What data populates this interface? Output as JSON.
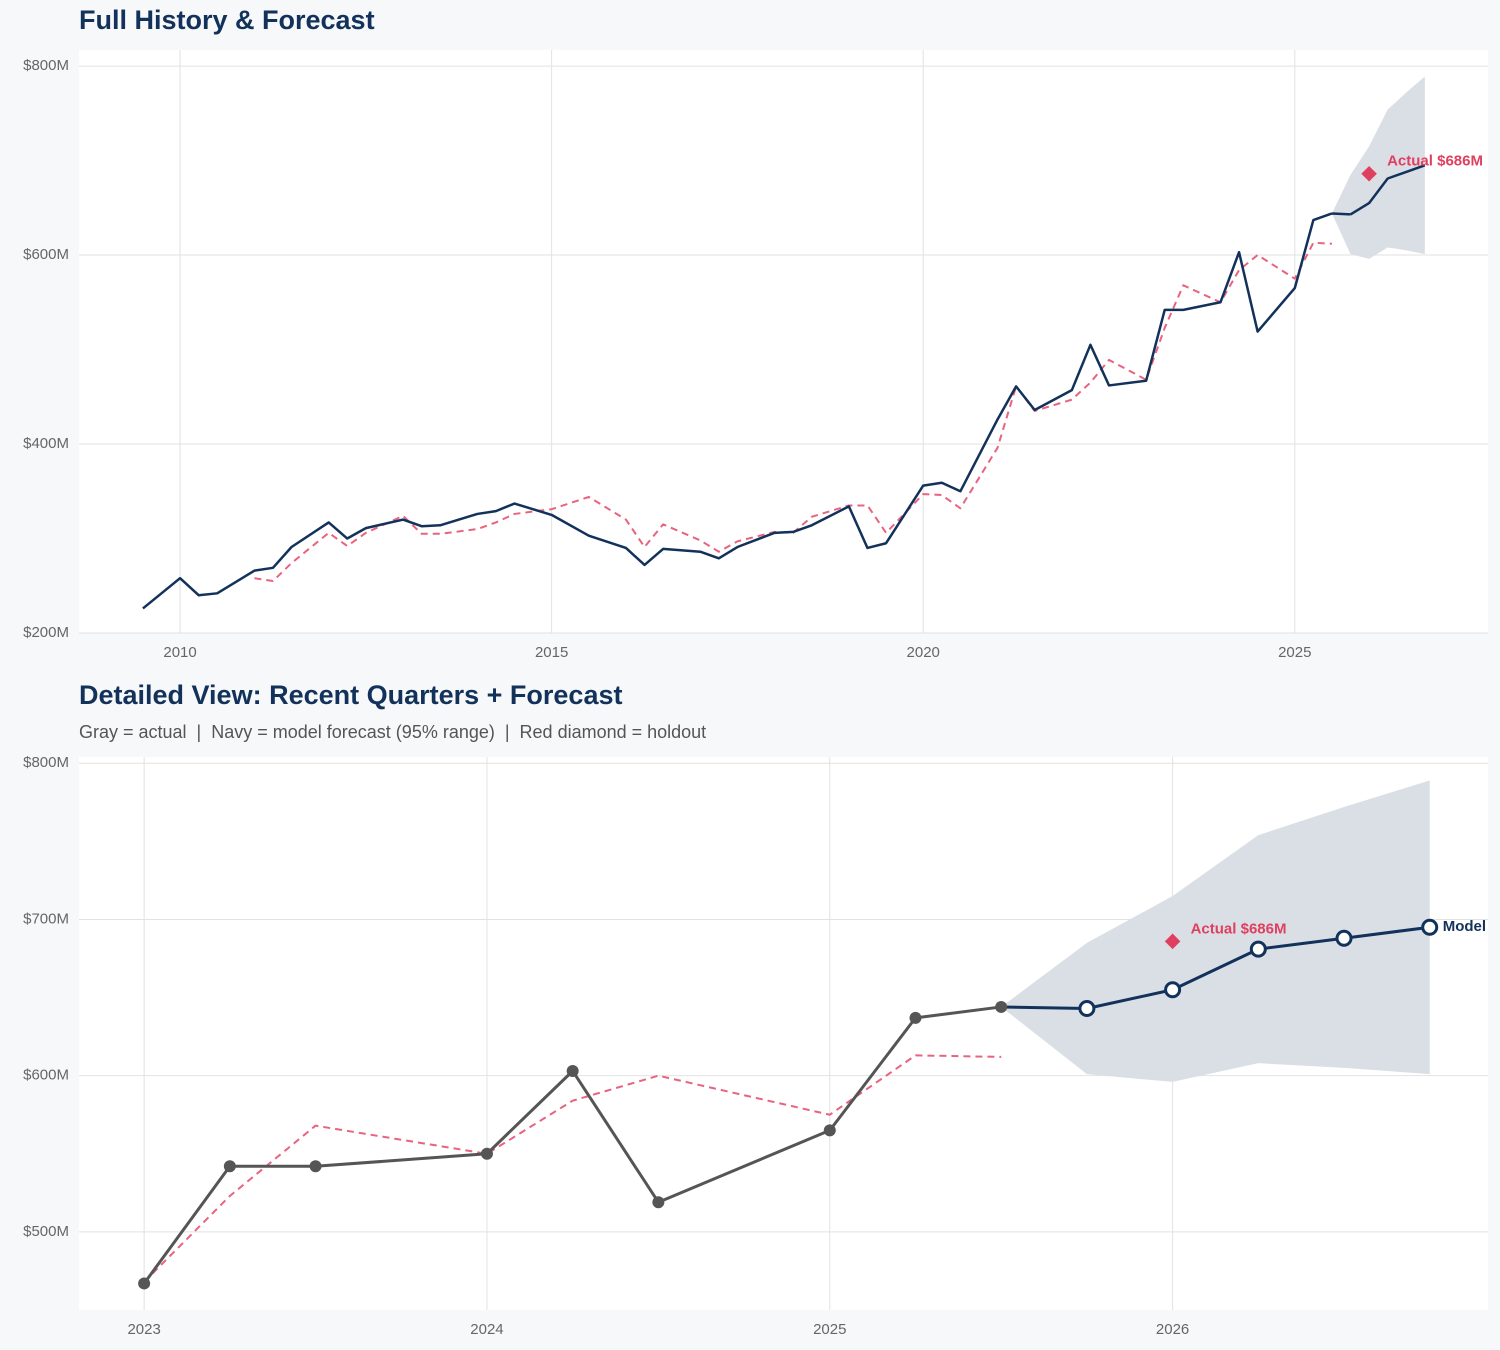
{
  "chart_data": [
    {
      "type": "line",
      "title": "Full History & Forecast",
      "x": [
        2009.5,
        2010,
        2010.25,
        2010.5,
        2011,
        2011.25,
        2011.5,
        2012,
        2012.25,
        2012.5,
        2013,
        2013.25,
        2013.5,
        2014,
        2014.25,
        2014.5,
        2015,
        2015.5,
        2016,
        2016.25,
        2016.5,
        2017,
        2017.25,
        2017.5,
        2018,
        2018.25,
        2018.5,
        2019,
        2019.25,
        2019.5,
        2020,
        2020.25,
        2020.5,
        2021,
        2021.25,
        2021.5,
        2022,
        2022.25,
        2022.5,
        2023,
        2023.25,
        2023.5,
        2024,
        2024.25,
        2024.5,
        2025,
        2025.25,
        2025.5
      ],
      "actual": {
        "color": "#13325b",
        "values": [
          226,
          258,
          240,
          242,
          266,
          269,
          291,
          317,
          300,
          311,
          320,
          313,
          314,
          326,
          329,
          337,
          325,
          303,
          290,
          272,
          289,
          286,
          279,
          291,
          306,
          307,
          314,
          334,
          290,
          295,
          356,
          359,
          350,
          426,
          461,
          436,
          457,
          505,
          462,
          467,
          542,
          542,
          550,
          603,
          519,
          565,
          637,
          644
        ]
      },
      "fitted": {
        "color": "#e8637f",
        "values": [
          null,
          null,
          null,
          null,
          258,
          255,
          274,
          306,
          292,
          306,
          324,
          305,
          305,
          310,
          317,
          326,
          331,
          344,
          320,
          291,
          315,
          298,
          286,
          297,
          307,
          306,
          323,
          335,
          335,
          306,
          347,
          346,
          332,
          396,
          461,
          435,
          447,
          465,
          489,
          468,
          523,
          568,
          550,
          584,
          600,
          575,
          613,
          612
        ]
      },
      "forecast": {
        "color": "#13325b",
        "band_color": "#dadfe6",
        "x": [
          2025.75,
          2026,
          2026.25,
          2026.5,
          2026.75
        ],
        "values": [
          643,
          655,
          681,
          688,
          695
        ],
        "lower": [
          601,
          596,
          608,
          605,
          601
        ],
        "upper": [
          685,
          715,
          754,
          772,
          789
        ]
      },
      "holdout": {
        "color": "#e0405f",
        "x": [
          2026
        ],
        "values": [
          686
        ],
        "value_labels": [
          "Actual $686M"
        ]
      },
      "xlim": [
        2008.64,
        2027.6
      ],
      "ylim": [
        200,
        817
      ],
      "xticks": [
        2010,
        2015,
        2020,
        2025
      ],
      "yticks": [
        {
          "value": 200,
          "label": "$200M"
        },
        {
          "value": 400,
          "label": "$400M"
        },
        {
          "value": 600,
          "label": "$600M"
        },
        {
          "value": 800,
          "label": "$800M"
        }
      ],
      "grid": true,
      "markers": false
    },
    {
      "type": "line",
      "title": "Detailed View: Recent Quarters + Forecast",
      "subtitle": "Gray = actual  |  Navy = model forecast (95% range)  |  Red diamond = holdout",
      "x": [
        2023,
        2023.25,
        2023.5,
        2024,
        2024.25,
        2024.5,
        2025,
        2025.25,
        2025.5
      ],
      "actual": {
        "color": "#555555",
        "values": [
          467,
          542,
          542,
          550,
          603,
          519,
          565,
          637,
          644
        ]
      },
      "fitted": {
        "color": "#e8637f",
        "values": [
          468,
          523,
          568,
          550,
          584,
          600,
          575,
          613,
          612
        ]
      },
      "forecast": {
        "color": "#13325b",
        "band_color": "#dadfe6",
        "x": [
          2025.75,
          2026,
          2026.25,
          2026.5,
          2026.75
        ],
        "values": [
          643,
          655,
          681,
          688,
          695
        ],
        "lower": [
          601,
          596,
          608,
          605,
          601
        ],
        "upper": [
          685,
          715,
          754,
          772,
          789
        ],
        "end_label": "Model"
      },
      "holdout": {
        "color": "#e0405f",
        "x": [
          2026
        ],
        "values": [
          686
        ],
        "value_labels": [
          "Actual $686M"
        ]
      },
      "xlim": [
        2022.81,
        2026.92
      ],
      "ylim": [
        450,
        804
      ],
      "xticks": [
        2023,
        2024,
        2025,
        2026
      ],
      "yticks": [
        {
          "value": 500,
          "label": "$500M"
        },
        {
          "value": 600,
          "label": "$600M"
        },
        {
          "value": 700,
          "label": "$700M"
        },
        {
          "value": 800,
          "label": "$800M"
        }
      ],
      "grid": true,
      "markers": true
    }
  ]
}
